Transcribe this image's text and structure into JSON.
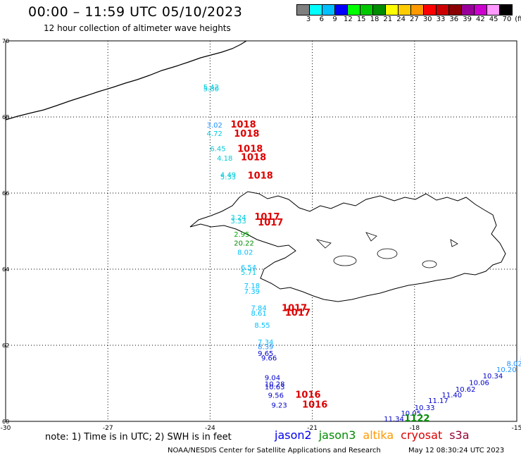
{
  "header": {
    "title": "00:00 – 11:59 UTC 05/10/2023",
    "subtitle": "12 hour collection of altimeter wave heights"
  },
  "colorbar": {
    "colors": [
      "#7f7f7f",
      "#00ffff",
      "#00bfff",
      "#0000ff",
      "#00ff00",
      "#00c800",
      "#008c00",
      "#ffff00",
      "#ffcc00",
      "#ff9900",
      "#ff0000",
      "#cc0000",
      "#8b0000",
      "#990099",
      "#cc00cc",
      "#ff99ff",
      "#000000"
    ],
    "labels": [
      "3",
      "6",
      "9",
      "12",
      "15",
      "18",
      "21",
      "24",
      "27",
      "30",
      "33",
      "36",
      "39",
      "42",
      "45",
      "70",
      "(ft)"
    ]
  },
  "axes": {
    "lon_labels": [
      "-30",
      "-27",
      "-24",
      "-21",
      "-18",
      "-15"
    ],
    "lat_labels": [
      "70",
      "68",
      "66",
      "64",
      "62",
      "60"
    ]
  },
  "observations": [
    {
      "text": "5.42",
      "lon": -24.2,
      "lat": 68.72,
      "color": "#00ccdd"
    },
    {
      "text": "5.80",
      "lon": -24.2,
      "lat": 68.68,
      "color": "#00ccdd"
    },
    {
      "text": "3.02",
      "lon": -24.1,
      "lat": 67.72,
      "color": "#1e90ff"
    },
    {
      "text": "1018",
      "lon": -23.4,
      "lat": 67.72,
      "color": "#dd0000"
    },
    {
      "text": "4.72",
      "lon": -24.1,
      "lat": 67.5,
      "color": "#00ccdd"
    },
    {
      "text": "1018",
      "lon": -23.3,
      "lat": 67.48,
      "color": "#dd0000"
    },
    {
      "text": "6.45",
      "lon": -24.0,
      "lat": 67.1,
      "color": "#00ccdd"
    },
    {
      "text": "1018",
      "lon": -23.2,
      "lat": 67.08,
      "color": "#dd0000"
    },
    {
      "text": "4.18",
      "lon": -23.8,
      "lat": 66.85,
      "color": "#00ccdd"
    },
    {
      "text": "1018",
      "lon": -23.1,
      "lat": 66.86,
      "color": "#dd0000"
    },
    {
      "text": "4.49",
      "lon": -23.7,
      "lat": 66.42,
      "color": "#00ccdd"
    },
    {
      "text": "5.33",
      "lon": -23.7,
      "lat": 66.36,
      "color": "#00ccdd"
    },
    {
      "text": "1018",
      "lon": -22.9,
      "lat": 66.38,
      "color": "#dd0000"
    },
    {
      "text": "3.24",
      "lon": -23.4,
      "lat": 65.3,
      "color": "#00ccdd"
    },
    {
      "text": "1017",
      "lon": -22.7,
      "lat": 65.3,
      "color": "#dd0000"
    },
    {
      "text": "3.33",
      "lon": -23.4,
      "lat": 65.2,
      "color": "#00ccdd"
    },
    {
      "text": "1017",
      "lon": -22.6,
      "lat": 65.15,
      "color": "#dd0000"
    },
    {
      "text": "2.95",
      "lon": -23.3,
      "lat": 64.85,
      "color": "#00aa00"
    },
    {
      "text": "20.22",
      "lon": -23.3,
      "lat": 64.62,
      "color": "#008c00"
    },
    {
      "text": "8.02",
      "lon": -23.2,
      "lat": 64.38,
      "color": "#00bfff"
    },
    {
      "text": "6.54",
      "lon": -23.1,
      "lat": 63.98,
      "color": "#00bfff"
    },
    {
      "text": "5.71",
      "lon": -23.1,
      "lat": 63.85,
      "color": "#00ccdd"
    },
    {
      "text": "7.18",
      "lon": -23.0,
      "lat": 63.5,
      "color": "#00bfff"
    },
    {
      "text": "7.39",
      "lon": -23.0,
      "lat": 63.35,
      "color": "#00bfff"
    },
    {
      "text": "7.84",
      "lon": -22.8,
      "lat": 62.92,
      "color": "#00bfff"
    },
    {
      "text": "1017",
      "lon": -21.9,
      "lat": 62.9,
      "color": "#dd0000"
    },
    {
      "text": "8.61",
      "lon": -22.8,
      "lat": 62.78,
      "color": "#00bfff"
    },
    {
      "text": "1017",
      "lon": -21.8,
      "lat": 62.78,
      "color": "#dd0000"
    },
    {
      "text": "8.55",
      "lon": -22.7,
      "lat": 62.46,
      "color": "#00bfff"
    },
    {
      "text": "7.34",
      "lon": -22.6,
      "lat": 62.02,
      "color": "#00bfff"
    },
    {
      "text": "8.39",
      "lon": -22.6,
      "lat": 61.9,
      "color": "#1e90ff"
    },
    {
      "text": "9.65",
      "lon": -22.6,
      "lat": 61.72,
      "color": "#0000cc"
    },
    {
      "text": "9.66",
      "lon": -22.5,
      "lat": 61.6,
      "color": "#0000cc"
    },
    {
      "text": "9.04",
      "lon": -22.4,
      "lat": 61.08,
      "color": "#0000cc"
    },
    {
      "text": "10.28",
      "lon": -22.4,
      "lat": 60.92,
      "color": "#0000cc"
    },
    {
      "text": "10.63",
      "lon": -22.4,
      "lat": 60.84,
      "color": "#0000cc"
    },
    {
      "text": "9.56",
      "lon": -22.3,
      "lat": 60.62,
      "color": "#0000cc"
    },
    {
      "text": "1016",
      "lon": -21.5,
      "lat": 60.62,
      "color": "#dd0000"
    },
    {
      "text": "9.23",
      "lon": -22.2,
      "lat": 60.36,
      "color": "#0000cc"
    },
    {
      "text": "1016",
      "lon": -21.3,
      "lat": 60.36,
      "color": "#dd0000"
    },
    {
      "text": "11.34",
      "lon": -18.9,
      "lat": 60.0,
      "color": "#0000cc"
    },
    {
      "text": "10.05",
      "lon": -18.4,
      "lat": 60.15,
      "color": "#0000cc"
    },
    {
      "text": "1122",
      "lon": -18.3,
      "lat": 60.0,
      "color": "#008c00"
    },
    {
      "text": "10.33",
      "lon": -18.0,
      "lat": 60.3,
      "color": "#0000cc"
    },
    {
      "text": "11.17",
      "lon": -17.6,
      "lat": 60.48,
      "color": "#0000cc"
    },
    {
      "text": "11.40",
      "lon": -17.2,
      "lat": 60.63,
      "color": "#0000cc"
    },
    {
      "text": "10.62",
      "lon": -16.8,
      "lat": 60.78,
      "color": "#0000cc"
    },
    {
      "text": "10.06",
      "lon": -16.4,
      "lat": 60.95,
      "color": "#0000cc"
    },
    {
      "text": "10.34",
      "lon": -16.0,
      "lat": 61.13,
      "color": "#0000cc"
    },
    {
      "text": "10.20",
      "lon": -15.6,
      "lat": 61.3,
      "color": "#1e90ff"
    },
    {
      "text": "8.02",
      "lon": -15.3,
      "lat": 61.45,
      "color": "#1e90ff"
    },
    {
      "text": "8.0",
      "lon": -14.9,
      "lat": 61.6,
      "color": "#1e90ff"
    }
  ],
  "footer": {
    "note": "note:  1) Time is in UTC;  2) SWH is in feet",
    "satellites": [
      {
        "name": "jason2",
        "color": "#0000ee"
      },
      {
        "name": "jason3",
        "color": "#008c00"
      },
      {
        "name": "altika",
        "color": "#ff9900"
      },
      {
        "name": "cryosat",
        "color": "#dd0000"
      },
      {
        "name": "s3a",
        "color": "#990033"
      }
    ],
    "credit": "NOAA/NESDIS Center for Satellite Applications and Research",
    "timestamp": "May 12 08:30:24 UTC 2023"
  }
}
